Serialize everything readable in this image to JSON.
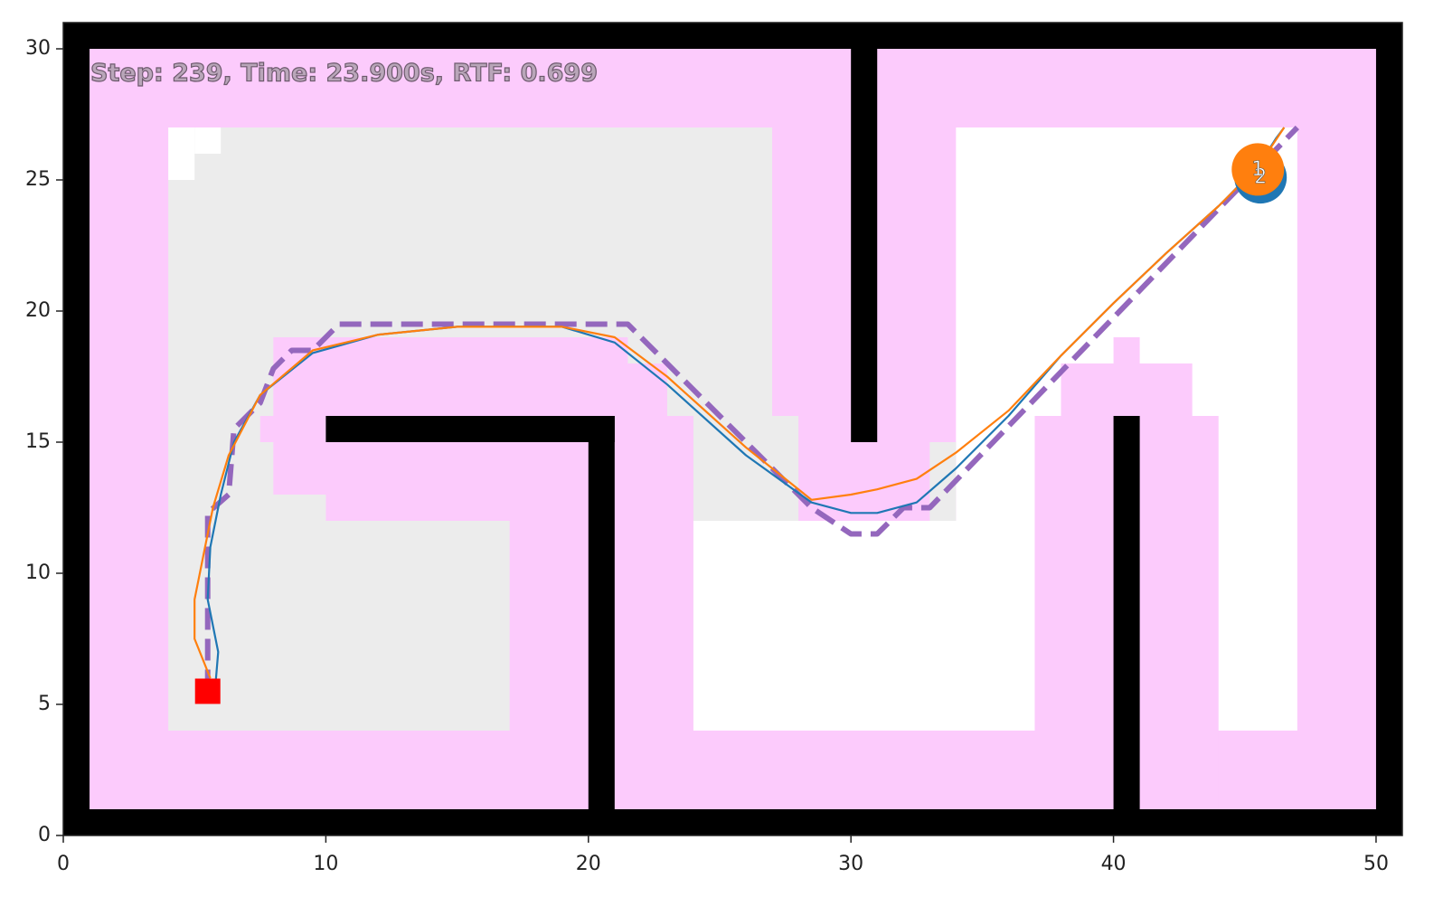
{
  "chart_data": {
    "type": "line",
    "annotation": "Step: 239, Time: 23.900s, RTF: 0.699",
    "xlim": [
      0,
      51
    ],
    "ylim": [
      0,
      31
    ],
    "xticks": [
      0,
      10,
      20,
      30,
      40,
      50
    ],
    "yticks": [
      0,
      5,
      10,
      15,
      20,
      25,
      30
    ],
    "grid": false,
    "series": [
      {
        "color": "#9467bd",
        "dashed": true,
        "x": [
          5.5,
          5.5,
          6.3,
          6.5,
          7.5,
          8,
          8.7,
          9.5,
          10.5,
          21.5,
          23,
          28.5,
          30,
          31,
          32,
          33,
          47
        ],
        "y": [
          5.5,
          12.3,
          13,
          15.5,
          16.5,
          17.8,
          18.5,
          18.5,
          19.5,
          19.5,
          18,
          12.5,
          11.5,
          11.5,
          12.5,
          12.5,
          27
        ]
      },
      {
        "color": "#1f77b4",
        "dashed": false,
        "x": [
          5.8,
          5.9,
          5.5,
          5.6,
          6,
          6.5,
          7.5,
          9.5,
          12,
          15,
          19,
          21,
          23,
          26,
          28.5,
          30,
          31,
          32.5,
          34,
          36,
          38,
          40,
          42,
          44,
          45.5,
          46.2,
          46.5
        ],
        "y": [
          5.8,
          7,
          9,
          11,
          13,
          15,
          16.8,
          18.4,
          19.1,
          19.4,
          19.4,
          18.8,
          17.2,
          14.5,
          12.7,
          12.3,
          12.3,
          12.7,
          14,
          16,
          18.3,
          20.3,
          22.2,
          24,
          25.5,
          26.6,
          27
        ]
      },
      {
        "color": "#ff7f0e",
        "dashed": false,
        "x": [
          5.6,
          5,
          5,
          5.4,
          5.7,
          6.3,
          7.5,
          9.5,
          12,
          15,
          19,
          21,
          23,
          26,
          28.5,
          30,
          31,
          32.5,
          34,
          36,
          38,
          40,
          42,
          44,
          45.5,
          46.5
        ],
        "y": [
          6,
          7.5,
          9,
          11,
          12.5,
          14.5,
          16.8,
          18.5,
          19.1,
          19.4,
          19.4,
          19,
          17.5,
          14.8,
          12.8,
          13,
          13.2,
          13.6,
          14.6,
          16.2,
          18.3,
          20.3,
          22.2,
          24,
          25.5,
          27
        ]
      }
    ],
    "markers": [
      {
        "x": 5.5,
        "y": 5.5,
        "color": "#ff0000",
        "shape": "square"
      },
      {
        "x": 45.6,
        "y": 25.1,
        "color": "#1f77b4",
        "shape": "circle",
        "label": "2"
      },
      {
        "x": 45.5,
        "y": 25.4,
        "color": "#ff7f0e",
        "shape": "circle",
        "label": "1"
      }
    ]
  }
}
